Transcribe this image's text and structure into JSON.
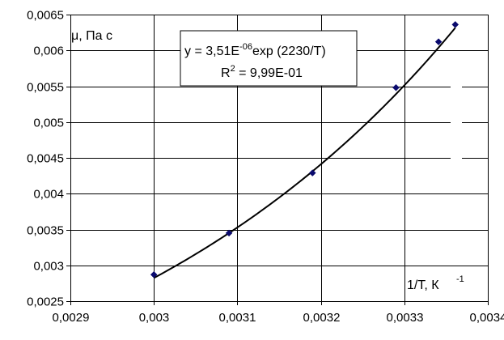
{
  "chart_data": {
    "type": "scatter",
    "title": "",
    "ylabel": "μ, Па с",
    "xlabel": "1/T,  К",
    "xlabel_sup": "-1",
    "xlim": [
      0.0029,
      0.0034
    ],
    "ylim": [
      0.0025,
      0.0065
    ],
    "x_ticks": [
      0.0029,
      0.003,
      0.0031,
      0.0032,
      0.0033,
      0.0034
    ],
    "x_tick_labels": [
      "0,0029",
      "0,003",
      "0,0031",
      "0,0032",
      "0,0033",
      "0,0034"
    ],
    "y_ticks": [
      0.0025,
      0.003,
      0.0035,
      0.004,
      0.0045,
      0.005,
      0.0055,
      0.006,
      0.0065
    ],
    "y_tick_labels": [
      "0,0025",
      "0,003",
      "0,0035",
      "0,004",
      "0,0045",
      "0,005",
      "0,0055",
      "0,006",
      "0,0065"
    ],
    "grid": true,
    "points": [
      {
        "x": 0.003,
        "y": 0.00287
      },
      {
        "x": 0.00309,
        "y": 0.00345
      },
      {
        "x": 0.00319,
        "y": 0.00429
      },
      {
        "x": 0.00329,
        "y": 0.00548
      },
      {
        "x": 0.003341,
        "y": 0.00612
      },
      {
        "x": 0.003361,
        "y": 0.00636
      }
    ],
    "trendline": {
      "type": "exponential",
      "a": 3.51e-06,
      "b": 2230,
      "x_range": [
        0.003,
        0.003361
      ]
    },
    "equation_label": {
      "line1_prefix": "y = 3,51E",
      "line1_sup": "-06",
      "line1_suffix": "exp (2230/T)",
      "line2_prefix": "R",
      "line2_sup": "2",
      "line2_suffix": " = 9,99E-01"
    },
    "colors": {
      "marker": "#0a0a6e",
      "trendline": "#000000",
      "grid": "#000000",
      "background": "#ffffff"
    }
  }
}
